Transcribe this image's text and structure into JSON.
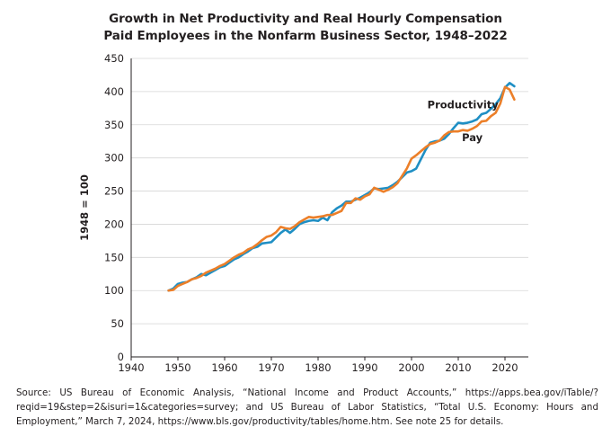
{
  "title_line1": "Growth in Net Productivity and Real Hourly Compensation",
  "title_line2": "Paid Employees in the Nonfarm Business Sector, 1948–2022",
  "source": "Source: US Bureau of Economic Analysis, “National Income and Product Accounts,” https://apps.bea.gov/iTable/?reqid=19&step=2&isuri=1&categories=survey; and US Bureau of Labor Statistics, “Total U.S. Economy: Hours and Employment,” March 7, 2024, https://www.bls.gov/productivity/tables/home.htm. See note 25 for details.",
  "colors": {
    "productivity": "#1f8fc4",
    "pay": "#ec7f29",
    "axis": "#231f20",
    "grid": "#d6d6d6"
  },
  "chart_data": {
    "type": "line",
    "title": "Growth in Net Productivity and Real Hourly Compensation Paid Employees in the Nonfarm Business Sector, 1948–2022",
    "xlabel": "",
    "ylabel": "1948 = 100",
    "xlim": [
      1940,
      2025
    ],
    "ylim": [
      0,
      450
    ],
    "xticks": [
      1940,
      1950,
      1960,
      1970,
      1980,
      1990,
      2000,
      2010,
      2020
    ],
    "yticks": [
      0,
      50,
      100,
      150,
      200,
      250,
      300,
      350,
      400,
      450
    ],
    "grid": "horizontal",
    "legend": "direct labels",
    "series": [
      {
        "name": "Productivity",
        "label_year": 2011,
        "label_value": 375,
        "x": [
          1948,
          1949,
          1950,
          1951,
          1952,
          1953,
          1954,
          1955,
          1956,
          1957,
          1958,
          1959,
          1960,
          1961,
          1962,
          1963,
          1964,
          1965,
          1966,
          1967,
          1968,
          1969,
          1970,
          1971,
          1972,
          1973,
          1974,
          1975,
          1976,
          1977,
          1978,
          1979,
          1980,
          1981,
          1982,
          1983,
          1984,
          1985,
          1986,
          1987,
          1988,
          1989,
          1990,
          1991,
          1992,
          1993,
          1994,
          1995,
          1996,
          1997,
          1998,
          1999,
          2000,
          2001,
          2002,
          2003,
          2004,
          2005,
          2006,
          2007,
          2008,
          2009,
          2010,
          2011,
          2012,
          2013,
          2014,
          2015,
          2016,
          2017,
          2018,
          2019,
          2020,
          2021,
          2022
        ],
        "values": [
          100,
          103,
          110,
          112,
          113,
          117,
          120,
          125,
          123,
          127,
          131,
          135,
          137,
          142,
          147,
          150,
          155,
          159,
          164,
          166,
          171,
          172,
          173,
          180,
          187,
          192,
          187,
          193,
          200,
          203,
          205,
          206,
          205,
          210,
          206,
          218,
          224,
          228,
          234,
          234,
          237,
          240,
          244,
          248,
          254,
          253,
          254,
          255,
          259,
          264,
          271,
          278,
          280,
          284,
          298,
          312,
          323,
          325,
          326,
          329,
          336,
          345,
          353,
          352,
          353,
          355,
          358,
          366,
          368,
          374,
          381,
          390,
          406,
          413,
          408
        ]
      },
      {
        "name": "Pay",
        "label_year": 2013,
        "label_value": 325,
        "x": [
          1948,
          1949,
          1950,
          1951,
          1952,
          1953,
          1954,
          1955,
          1956,
          1957,
          1958,
          1959,
          1960,
          1961,
          1962,
          1963,
          1964,
          1965,
          1966,
          1967,
          1968,
          1969,
          1970,
          1971,
          1972,
          1973,
          1974,
          1975,
          1976,
          1977,
          1978,
          1979,
          1980,
          1981,
          1982,
          1983,
          1984,
          1985,
          1986,
          1987,
          1988,
          1989,
          1990,
          1991,
          1992,
          1993,
          1994,
          1995,
          1996,
          1997,
          1998,
          1999,
          2000,
          2001,
          2002,
          2003,
          2004,
          2005,
          2006,
          2007,
          2008,
          2009,
          2010,
          2011,
          2012,
          2013,
          2014,
          2015,
          2016,
          2017,
          2018,
          2019,
          2020,
          2021,
          2022
        ],
        "values": [
          100,
          101,
          107,
          110,
          113,
          117,
          119,
          122,
          127,
          130,
          133,
          137,
          140,
          145,
          150,
          154,
          157,
          162,
          165,
          170,
          176,
          181,
          183,
          188,
          196,
          194,
          193,
          197,
          203,
          207,
          211,
          210,
          211,
          212,
          214,
          214,
          217,
          220,
          232,
          232,
          239,
          237,
          242,
          245,
          255,
          252,
          249,
          252,
          256,
          262,
          273,
          284,
          299,
          304,
          310,
          316,
          321,
          323,
          326,
          334,
          339,
          340,
          340,
          342,
          341,
          344,
          348,
          355,
          356,
          363,
          368,
          382,
          407,
          403,
          388
        ]
      }
    ]
  }
}
